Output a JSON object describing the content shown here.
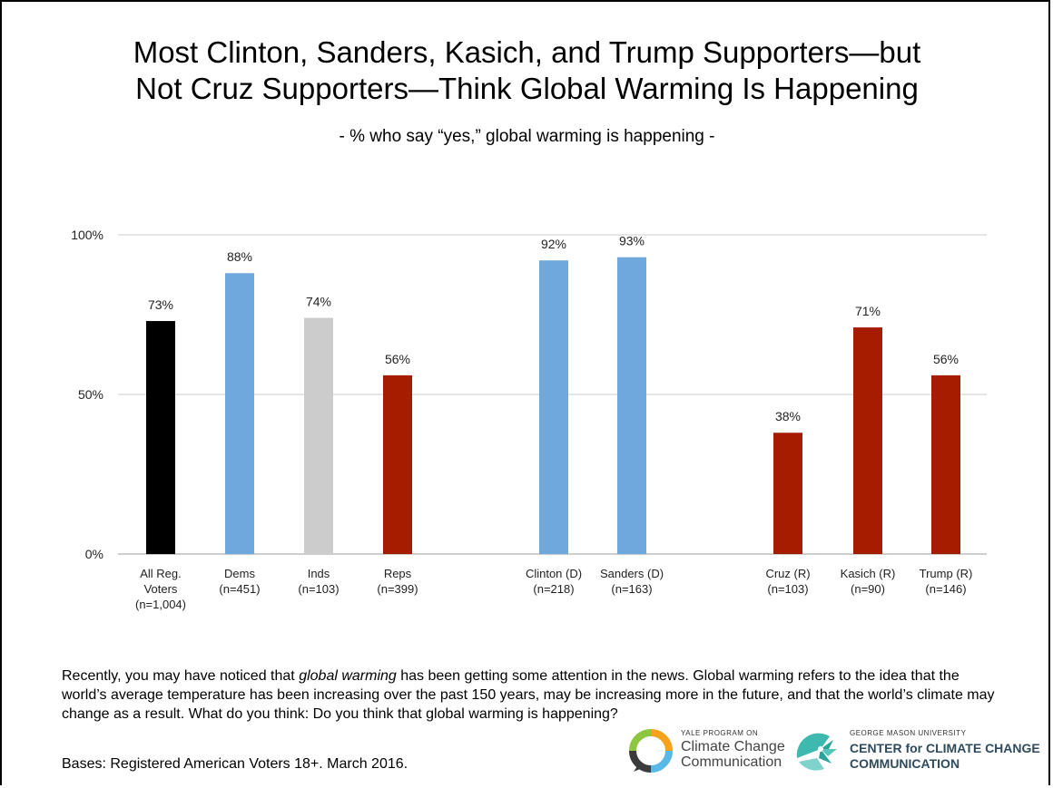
{
  "slide": {
    "title_line1": "Most Clinton, Sanders, Kasich, and Trump Supporters—but",
    "title_line2": "Not Cruz Supporters—Think Global Warming Is Happening",
    "subtitle": "- % who say “yes,” global warming is happening -"
  },
  "chart_data": {
    "type": "bar",
    "title": "Most Clinton, Sanders, Kasich, and Trump Supporters—but Not Cruz Supporters—Think Global Warming Is Happening",
    "subtitle": "- % who say “yes,” global warming is happening -",
    "ylim": [
      0,
      100
    ],
    "yticks": [
      "0%",
      "50%",
      "100%"
    ],
    "grid": true,
    "categories": [
      [
        "All Reg.",
        "Voters",
        "(n=1,004)"
      ],
      [
        "Dems",
        "(n=451)"
      ],
      [
        "Inds",
        "(n=103)"
      ],
      [
        "Reps",
        "(n=399)"
      ],
      [
        "Clinton (D)",
        "(n=218)"
      ],
      [
        "Sanders (D)",
        "(n=163)"
      ],
      [
        "Cruz (R)",
        "(n=103)"
      ],
      [
        "Kasich (R)",
        "(n=90)"
      ],
      [
        "Trump (R)",
        "(n=146)"
      ]
    ],
    "values": [
      73,
      88,
      74,
      56,
      92,
      93,
      38,
      71,
      56
    ],
    "value_labels": [
      "73%",
      "88%",
      "74%",
      "56%",
      "92%",
      "93%",
      "38%",
      "71%",
      "56%"
    ],
    "colors": [
      "#000000",
      "#6fa8dc",
      "#cccccc",
      "#a61c00",
      "#6fa8dc",
      "#6fa8dc",
      "#a61c00",
      "#a61c00",
      "#a61c00"
    ]
  },
  "footer": {
    "question_before": "Recently, you may have noticed that ",
    "question_italic": "global warming",
    "question_after": " has been getting some attention in the news. Global warming refers to the idea that the world’s average temperature has been increasing over the past 150 years, may be increasing more in the future, and that the world’s climate may change as a result. What do you think: Do you think that global warming is happening?",
    "bases": "Bases: Registered American Voters 18+. March 2016."
  },
  "logos": {
    "yale_small": "YALE PROGRAM ON",
    "yale_line1": "Climate Change",
    "yale_line2": "Communication",
    "gmu_small": "GEORGE MASON UNIVERSITY",
    "gmu_line1": "CENTER for CLIMATE CHANGE",
    "gmu_line2": "COMMUNICATION"
  }
}
